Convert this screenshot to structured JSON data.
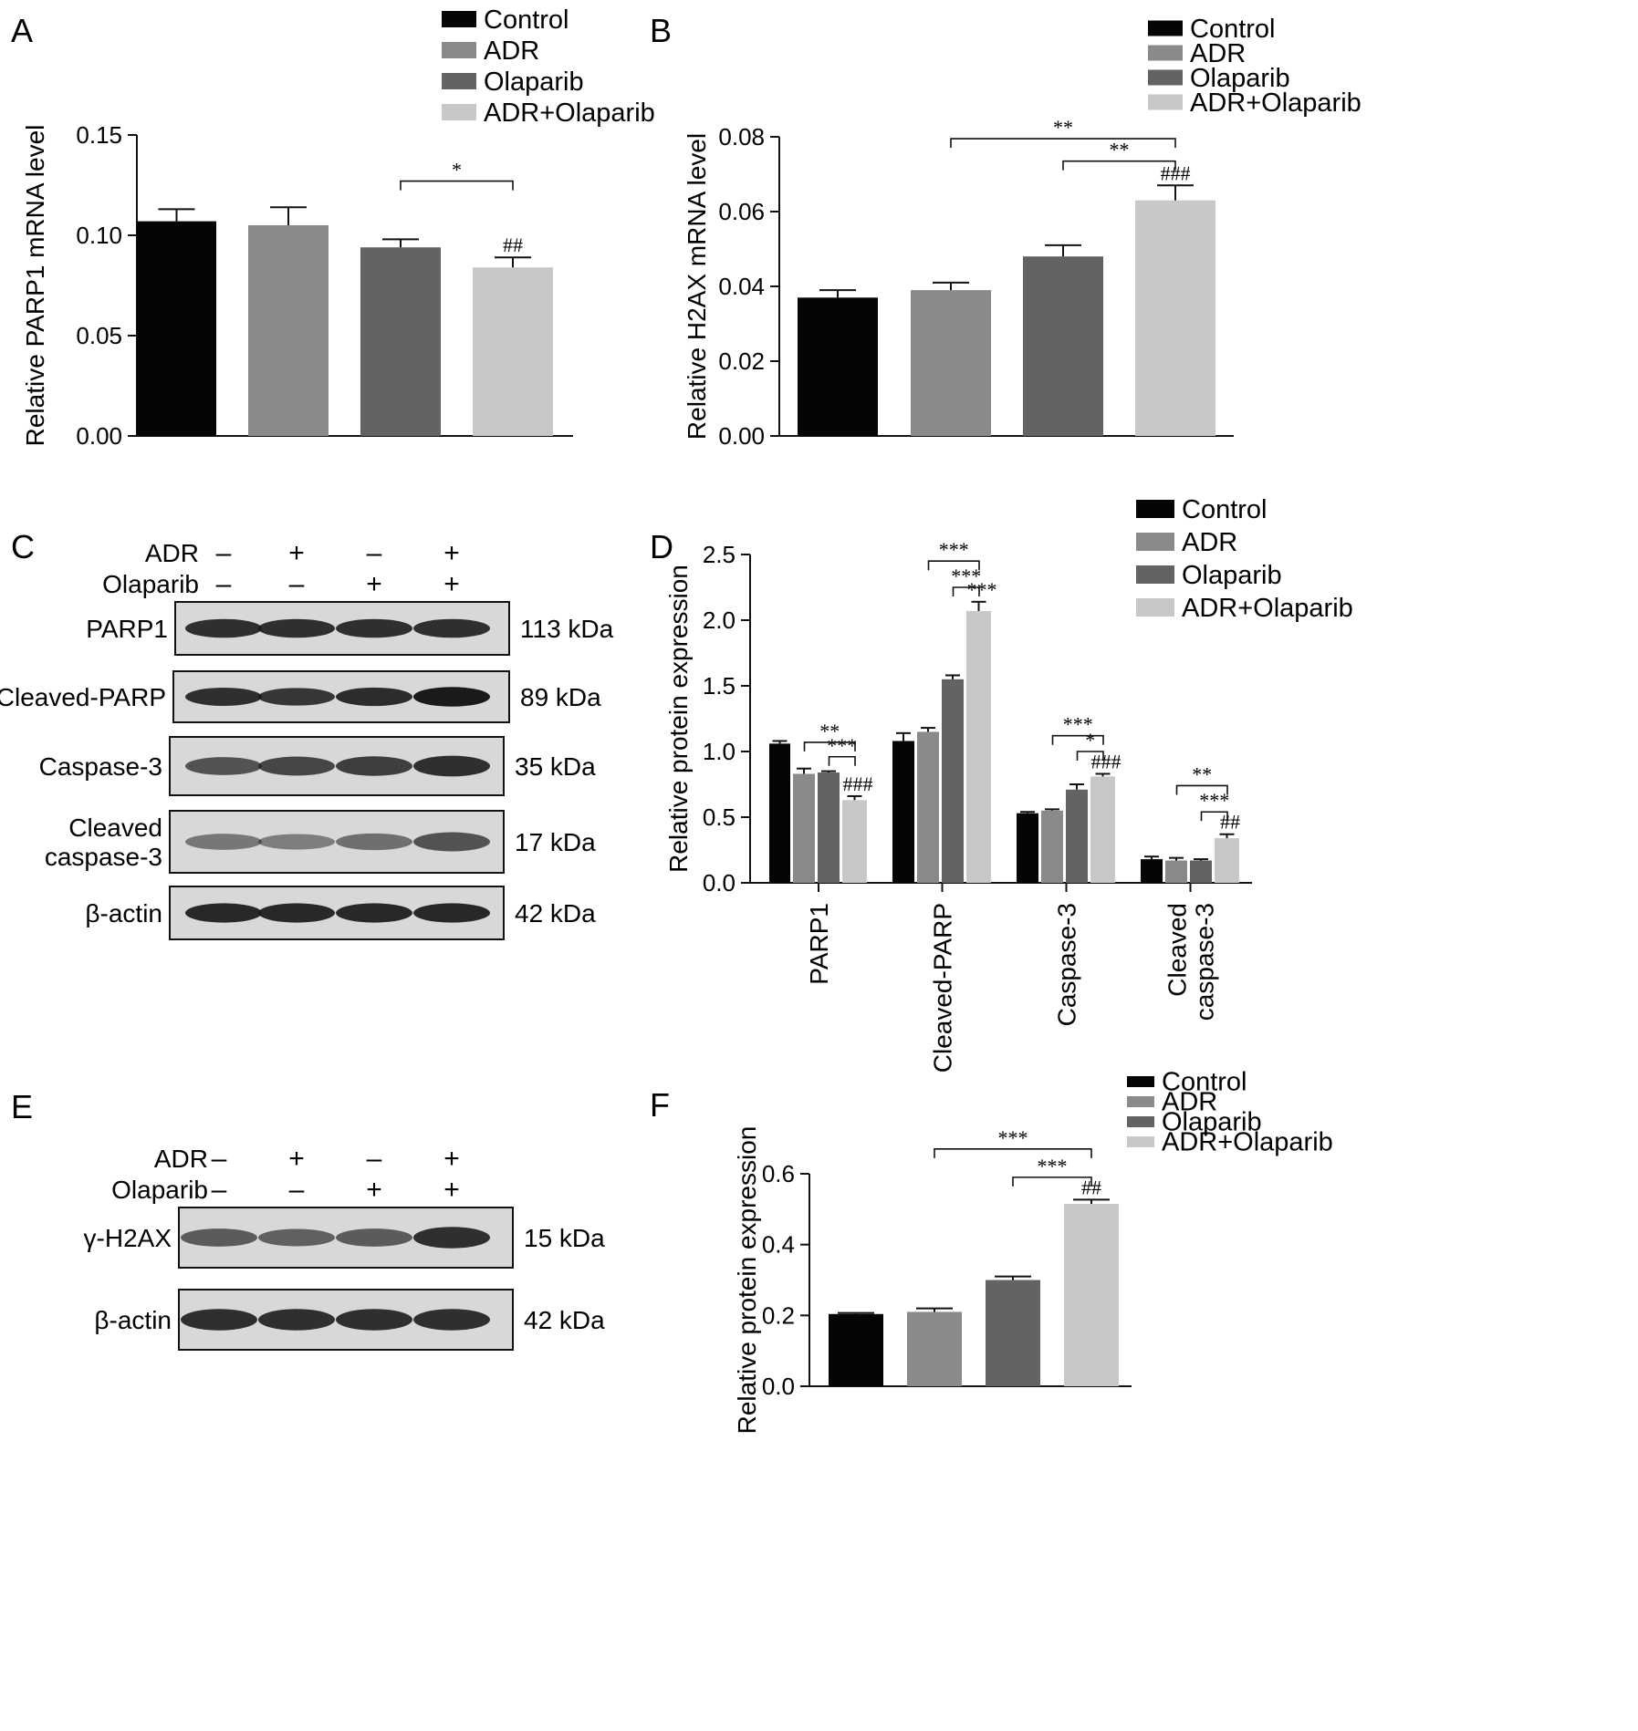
{
  "colors": {
    "Control": "#050505",
    "ADR": "#8a8a8a",
    "Olaparib": "#636363",
    "ADR+Olaparib": "#c8c8c8",
    "blot_bg": "#d8d8d8",
    "band": "#1a1a1a"
  },
  "chart_data": [
    {
      "panel": "A",
      "type": "bar",
      "ylabel": "Relative PARP1 mRNA level",
      "ylim": [
        0,
        0.15
      ],
      "yticks": [
        "0.00",
        "0.05",
        "0.10",
        "0.15"
      ],
      "categories": [
        "Control",
        "ADR",
        "Olaparib",
        "ADR+Olaparib"
      ],
      "values": [
        0.107,
        0.105,
        0.094,
        0.084
      ],
      "errors": [
        0.006,
        0.009,
        0.004,
        0.005
      ],
      "legend": [
        "Control",
        "ADR",
        "Olaparib",
        "ADR+Olaparib"
      ],
      "annotations": [
        {
          "label": "##",
          "bar": 3
        },
        {
          "label": "*",
          "from": 2,
          "to": 3,
          "level": 0.127
        }
      ]
    },
    {
      "panel": "B",
      "type": "bar",
      "ylabel": "Relative H2AX mRNA level",
      "ylim": [
        0,
        0.08
      ],
      "yticks": [
        "0.00",
        "0.02",
        "0.04",
        "0.06",
        "0.08"
      ],
      "categories": [
        "Control",
        "ADR",
        "Olaparib",
        "ADR+Olaparib"
      ],
      "values": [
        0.037,
        0.039,
        0.048,
        0.063
      ],
      "errors": [
        0.002,
        0.002,
        0.003,
        0.004
      ],
      "legend": [
        "Control",
        "ADR",
        "Olaparib",
        "ADR+Olaparib"
      ],
      "annotations": [
        {
          "label": "###",
          "bar": 3
        },
        {
          "label": "**",
          "from": 2,
          "to": 3,
          "level": 0.0735
        },
        {
          "label": "**",
          "from": 1,
          "to": 3,
          "level": 0.0795
        }
      ]
    },
    {
      "panel": "D",
      "type": "bar",
      "ylabel": "Relative protein expression",
      "ylim": [
        0,
        2.5
      ],
      "yticks": [
        "0.0",
        "0.5",
        "1.0",
        "1.5",
        "2.0",
        "2.5"
      ],
      "categories": [
        "PARP1",
        "Cleaved-PARP",
        "Caspase-3",
        "Cleaved\ncaspase-3"
      ],
      "series": [
        {
          "name": "Control",
          "values": [
            1.06,
            1.08,
            0.53,
            0.18
          ],
          "errors": [
            0.02,
            0.06,
            0.01,
            0.02
          ]
        },
        {
          "name": "ADR",
          "values": [
            0.83,
            1.15,
            0.55,
            0.17
          ],
          "errors": [
            0.04,
            0.03,
            0.01,
            0.02
          ]
        },
        {
          "name": "Olaparib",
          "values": [
            0.84,
            1.55,
            0.71,
            0.17
          ],
          "errors": [
            0.01,
            0.03,
            0.04,
            0.01
          ]
        },
        {
          "name": "ADR+Olaparib",
          "values": [
            0.63,
            2.07,
            0.81,
            0.34
          ],
          "errors": [
            0.03,
            0.07,
            0.02,
            0.03
          ]
        }
      ],
      "legend": [
        "Control",
        "ADR",
        "Olaparib",
        "ADR+Olaparib"
      ],
      "annotations": [
        {
          "group": 0,
          "label": "###",
          "bar": 3
        },
        {
          "group": 0,
          "label": "***",
          "from": 2,
          "to": 3,
          "level": 0.96
        },
        {
          "group": 0,
          "label": "**",
          "from": 1,
          "to": 3,
          "level": 1.07
        },
        {
          "group": 1,
          "label": "***",
          "bar": 3
        },
        {
          "group": 1,
          "label": "***",
          "from": 2,
          "to": 3,
          "level": 2.25
        },
        {
          "group": 1,
          "label": "***",
          "from": 1,
          "to": 3,
          "level": 2.45
        },
        {
          "group": 2,
          "label": "###",
          "bar": 3
        },
        {
          "group": 2,
          "label": "*",
          "from": 2,
          "to": 3,
          "level": 1.0
        },
        {
          "group": 2,
          "label": "***",
          "from": 1,
          "to": 3,
          "level": 1.12
        },
        {
          "group": 3,
          "label": "##",
          "bar": 3
        },
        {
          "group": 3,
          "label": "***",
          "from": 2,
          "to": 3,
          "level": 0.54
        },
        {
          "group": 3,
          "label": "**",
          "from": 1,
          "to": 3,
          "level": 0.74
        }
      ]
    },
    {
      "panel": "F",
      "type": "bar",
      "ylabel": "Relative protein expression",
      "ylim": [
        0,
        0.6
      ],
      "yticks": [
        "0.0",
        "0.2",
        "0.4",
        "0.6"
      ],
      "categories": [
        "Control",
        "ADR",
        "Olaparib",
        "ADR+Olaparib"
      ],
      "values": [
        0.204,
        0.21,
        0.3,
        0.515
      ],
      "errors": [
        0.003,
        0.01,
        0.01,
        0.012
      ],
      "legend": [
        "Control",
        "ADR",
        "Olaparib",
        "ADR+Olaparib"
      ],
      "annotations": [
        {
          "label": "##",
          "bar": 3
        },
        {
          "label": "***",
          "from": 2,
          "to": 3,
          "level": 0.59
        },
        {
          "label": "***",
          "from": 1,
          "to": 3,
          "level": 0.67
        }
      ]
    }
  ],
  "panels": {
    "A": {
      "letter": "A"
    },
    "B": {
      "letter": "B"
    },
    "C": {
      "letter": "C",
      "treat_labels": [
        "ADR",
        "Olaparib"
      ],
      "adr_signs": [
        "–",
        "+",
        "–",
        "+"
      ],
      "olaparib_signs": [
        "–",
        "–",
        "+",
        "+"
      ],
      "blots": [
        {
          "label": "PARP1",
          "size": "113 kDa",
          "intensity": [
            0.85,
            0.85,
            0.85,
            0.85
          ]
        },
        {
          "label": "Cleaved-PARP",
          "size": "89 kDa",
          "intensity": [
            0.85,
            0.8,
            0.88,
            1.0
          ]
        },
        {
          "label": "Caspase-3",
          "size": "35 kDa",
          "intensity": [
            0.6,
            0.7,
            0.75,
            0.85
          ]
        },
        {
          "label": "Cleaved\ncaspase-3",
          "size": "17 kDa",
          "intensity": [
            0.35,
            0.3,
            0.4,
            0.6
          ]
        },
        {
          "label": "β-actin",
          "size": "42 kDa",
          "intensity": [
            0.9,
            0.9,
            0.9,
            0.9
          ]
        }
      ]
    },
    "D": {
      "letter": "D"
    },
    "E": {
      "letter": "E",
      "treat_labels": [
        "ADR",
        "Olaparib"
      ],
      "adr_signs": [
        "–",
        "+",
        "–",
        "+"
      ],
      "olaparib_signs": [
        "–",
        "–",
        "+",
        "+"
      ],
      "blots": [
        {
          "label": "γ-H2AX",
          "size": "15 kDa",
          "intensity": [
            0.55,
            0.5,
            0.55,
            0.85
          ]
        },
        {
          "label": "β-actin",
          "size": "42 kDa",
          "intensity": [
            0.85,
            0.85,
            0.85,
            0.85
          ]
        }
      ]
    },
    "F": {
      "letter": "F"
    }
  }
}
